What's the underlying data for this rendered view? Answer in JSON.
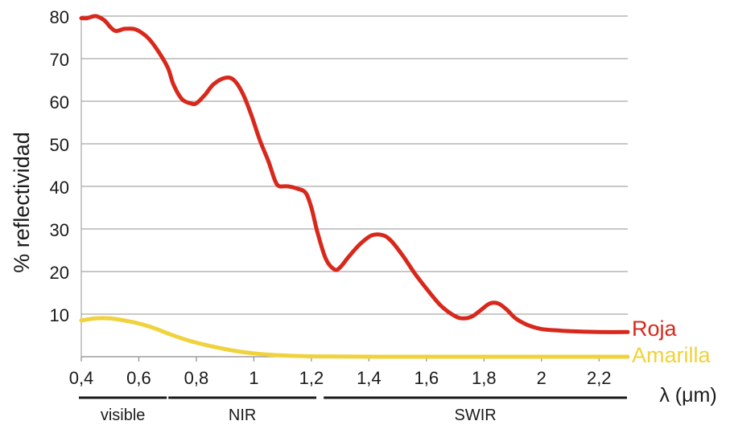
{
  "chart_data": {
    "type": "line",
    "title": "",
    "ylabel": "% reflectividad",
    "xlabel": "λ (μm)",
    "xlim": [
      0.4,
      2.3
    ],
    "ylim": [
      0,
      80
    ],
    "grid": true,
    "x_ticks": [
      {
        "value": 0.4,
        "label": "0,4"
      },
      {
        "value": 0.6,
        "label": "0,6"
      },
      {
        "value": 0.8,
        "label": "0,8"
      },
      {
        "value": 1.0,
        "label": "1"
      },
      {
        "value": 1.2,
        "label": "1,2"
      },
      {
        "value": 1.4,
        "label": "1,4"
      },
      {
        "value": 1.6,
        "label": "1,6"
      },
      {
        "value": 1.8,
        "label": "1,8"
      },
      {
        "value": 2.0,
        "label": "2"
      },
      {
        "value": 2.2,
        "label": "2,2"
      }
    ],
    "y_ticks": [
      {
        "value": 10,
        "label": "10"
      },
      {
        "value": 20,
        "label": "20"
      },
      {
        "value": 30,
        "label": "30"
      },
      {
        "value": 40,
        "label": "40"
      },
      {
        "value": 50,
        "label": "50"
      },
      {
        "value": 60,
        "label": "60"
      },
      {
        "value": 70,
        "label": "70"
      },
      {
        "value": 80,
        "label": "80"
      }
    ],
    "bands": [
      {
        "label": "visible",
        "x_start": 0.4,
        "x_end": 0.7
      },
      {
        "label": "NIR",
        "x_start": 0.7,
        "x_end": 1.22
      },
      {
        "label": "SWIR",
        "x_start": 1.24,
        "x_end": 2.3
      }
    ],
    "series": [
      {
        "name": "Roja",
        "color": "#d8281c",
        "x": [
          0.4,
          0.42,
          0.45,
          0.48,
          0.5,
          0.52,
          0.55,
          0.58,
          0.6,
          0.63,
          0.66,
          0.7,
          0.72,
          0.75,
          0.78,
          0.8,
          0.83,
          0.86,
          0.9,
          0.93,
          0.96,
          0.99,
          1.02,
          1.05,
          1.07,
          1.08,
          1.09,
          1.1,
          1.12,
          1.15,
          1.18,
          1.2,
          1.22,
          1.25,
          1.28,
          1.3,
          1.33,
          1.37,
          1.41,
          1.45,
          1.48,
          1.52,
          1.56,
          1.6,
          1.65,
          1.7,
          1.73,
          1.76,
          1.79,
          1.82,
          1.85,
          1.88,
          1.91,
          1.95,
          2.0,
          2.05,
          2.1,
          2.2,
          2.3
        ],
        "values": [
          79.5,
          79.5,
          80,
          79,
          77.5,
          76.5,
          77,
          77,
          76.5,
          75,
          72.5,
          68,
          64,
          60.5,
          59.5,
          59.5,
          61.5,
          64,
          65.5,
          65,
          62,
          57,
          51,
          46,
          42,
          40.5,
          40,
          40,
          40,
          39.5,
          38.5,
          35,
          29.5,
          23,
          20.5,
          21,
          23.5,
          26.5,
          28.5,
          28.5,
          27,
          23.5,
          19.5,
          16,
          12,
          9.5,
          9,
          9.5,
          11,
          12.5,
          12.5,
          11,
          9,
          7.5,
          6.5,
          6.2,
          6,
          5.8,
          5.8
        ]
      },
      {
        "name": "Amarilla",
        "color": "#f0d23c",
        "x": [
          0.4,
          0.45,
          0.5,
          0.55,
          0.6,
          0.65,
          0.7,
          0.75,
          0.8,
          0.85,
          0.9,
          0.95,
          1.0,
          1.05,
          1.1,
          1.2,
          1.3,
          1.5,
          1.7,
          2.0,
          2.3
        ],
        "values": [
          8.5,
          9.0,
          9.0,
          8.5,
          7.8,
          6.8,
          5.5,
          4.3,
          3.3,
          2.5,
          1.8,
          1.2,
          0.8,
          0.5,
          0.3,
          0.1,
          0.05,
          0,
          0,
          0,
          0
        ]
      }
    ]
  }
}
